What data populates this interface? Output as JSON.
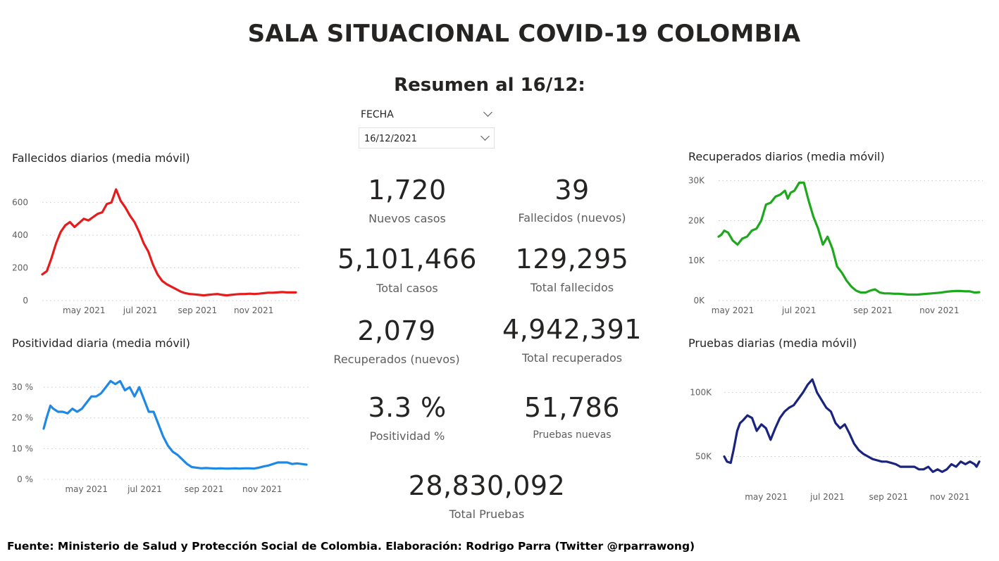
{
  "header": {
    "title": "SALA SITUACIONAL COVID-19 COLOMBIA",
    "subtitle": "Resumen al 16/12:"
  },
  "slicer": {
    "label": "FECHA",
    "value": "16/12/2021"
  },
  "kpis": [
    {
      "value": "1,720",
      "label": "Nuevos casos"
    },
    {
      "value": "39",
      "label": "Fallecidos (nuevos)"
    },
    {
      "value": "5,101,466",
      "label": "Total casos"
    },
    {
      "value": "129,295",
      "label": "Total fallecidos"
    },
    {
      "value": "2,079",
      "label": "Recuperados (nuevos)"
    },
    {
      "value": "4,942,391",
      "label": "Total recuperados"
    },
    {
      "value": "3.3 %",
      "label": "Positividad %"
    },
    {
      "value": "51,786",
      "label": "Pruebas nuevas"
    },
    {
      "value": "28,830,092",
      "label": "Total Pruebas"
    }
  ],
  "footer": "Fuente: Ministerio de Salud y Protección Social de Colombia. Elaboración: Rodrigo Parra (Twitter @rparrawong)",
  "chart_data": [
    {
      "type": "line",
      "title": "Fallecidos diarios (media móvil)",
      "color": "#e61c1c",
      "ylim": [
        0,
        650
      ],
      "yticks": [
        0,
        200,
        400,
        600
      ],
      "ytick_labels": [
        "0",
        "200",
        "400",
        "600"
      ],
      "xlim": [
        0,
        275
      ],
      "xticks": [
        {
          "x": 30,
          "label": "may 2021"
        },
        {
          "x": 91,
          "label": "jul 2021"
        },
        {
          "x": 153,
          "label": "sep 2021"
        },
        {
          "x": 214,
          "label": "nov 2021"
        }
      ],
      "grid": true,
      "series": [
        {
          "x": [
            0,
            5,
            10,
            15,
            20,
            25,
            30,
            35,
            40,
            45,
            50,
            55,
            60,
            65,
            70,
            75,
            80,
            85,
            90,
            95,
            100,
            105,
            110,
            115,
            120,
            125,
            130,
            135,
            140,
            145,
            150,
            155,
            160,
            165,
            170,
            175,
            180,
            185,
            190,
            195,
            200,
            205,
            210,
            215,
            220,
            225,
            230,
            235,
            240,
            245,
            250,
            255,
            260,
            265,
            270,
            275
          ],
          "y": [
            160,
            180,
            260,
            350,
            420,
            460,
            480,
            450,
            475,
            500,
            490,
            510,
            530,
            540,
            590,
            600,
            680,
            610,
            570,
            520,
            480,
            420,
            350,
            300,
            220,
            160,
            120,
            100,
            85,
            70,
            55,
            45,
            40,
            38,
            35,
            32,
            35,
            38,
            40,
            35,
            32,
            35,
            38,
            40,
            40,
            42,
            40,
            42,
            45,
            48,
            48,
            50,
            52,
            50,
            50,
            50
          ]
        }
      ]
    },
    {
      "type": "line",
      "title": "Positividad diaria (media móvil)",
      "color": "#1e88e5",
      "ylim": [
        0,
        33
      ],
      "yticks": [
        0,
        10,
        20,
        30
      ],
      "ytick_labels": [
        "0 %",
        "10 %",
        "20 %",
        "30 %"
      ],
      "xlim": [
        0,
        275
      ],
      "xticks": [
        {
          "x": 30,
          "label": "may 2021"
        },
        {
          "x": 91,
          "label": "jul 2021"
        },
        {
          "x": 153,
          "label": "sep 2021"
        },
        {
          "x": 214,
          "label": "nov 2021"
        }
      ],
      "grid": true,
      "series": [
        {
          "x": [
            0,
            3,
            7,
            10,
            15,
            20,
            25,
            30,
            35,
            40,
            45,
            50,
            55,
            60,
            65,
            70,
            75,
            80,
            85,
            90,
            95,
            100,
            105,
            110,
            115,
            120,
            125,
            130,
            135,
            140,
            145,
            150,
            155,
            160,
            165,
            170,
            175,
            180,
            185,
            190,
            195,
            200,
            205,
            210,
            215,
            220,
            225,
            230,
            235,
            240,
            245,
            250,
            255,
            260,
            265,
            270,
            275
          ],
          "y": [
            16.5,
            20,
            24,
            23,
            22,
            22,
            21.5,
            23,
            22,
            23,
            25,
            27,
            27,
            28,
            30,
            32,
            31,
            32,
            29,
            30,
            27,
            30,
            26,
            22,
            22,
            18,
            14,
            11,
            9,
            8,
            6.5,
            5,
            4,
            3.8,
            3.6,
            3.7,
            3.6,
            3.5,
            3.6,
            3.5,
            3.5,
            3.6,
            3.5,
            3.6,
            3.6,
            3.5,
            3.8,
            4.2,
            4.5,
            5,
            5.5,
            5.5,
            5.5,
            5,
            5.2,
            5,
            4.8
          ]
        }
      ]
    },
    {
      "type": "line",
      "title": "Recuperados diarios (media móvil)",
      "color": "#1ea81e",
      "ylim": [
        0,
        31000
      ],
      "yticks": [
        0,
        10000,
        20000,
        30000
      ],
      "ytick_labels": [
        "0K",
        "10K",
        "20K",
        "30K"
      ],
      "xlim": [
        0,
        275
      ],
      "xticks": [
        {
          "x": 0,
          "label": "may 2021"
        },
        {
          "x": 70,
          "label": "jul 2021"
        },
        {
          "x": 148,
          "label": "sep 2021"
        },
        {
          "x": 218,
          "label": "nov 2021"
        }
      ],
      "grid": true,
      "series": [
        {
          "x": [
            0,
            3,
            6,
            10,
            15,
            20,
            25,
            30,
            35,
            40,
            45,
            50,
            55,
            60,
            65,
            70,
            73,
            76,
            80,
            85,
            90,
            95,
            100,
            105,
            110,
            115,
            120,
            125,
            130,
            135,
            140,
            145,
            150,
            155,
            160,
            165,
            170,
            175,
            180,
            185,
            190,
            195,
            200,
            205,
            210,
            215,
            220,
            225,
            230,
            235,
            240,
            245,
            250,
            255,
            260,
            265,
            270,
            275
          ],
          "y": [
            16000,
            16500,
            17500,
            17000,
            15000,
            14000,
            15500,
            16000,
            17500,
            18000,
            20000,
            24000,
            24500,
            26000,
            26500,
            27500,
            25500,
            27000,
            27500,
            29500,
            29500,
            25000,
            21000,
            18000,
            14000,
            16000,
            13000,
            8500,
            7000,
            5000,
            3500,
            2500,
            2000,
            2000,
            2500,
            2800,
            2000,
            1800,
            1800,
            1700,
            1700,
            1600,
            1500,
            1500,
            1500,
            1600,
            1700,
            1800,
            1900,
            2000,
            2200,
            2300,
            2400,
            2400,
            2300,
            2300,
            2000,
            2100
          ]
        }
      ]
    },
    {
      "type": "line",
      "title": "Pruebas diarias (media móvil)",
      "color": "#1a237e",
      "ylim": [
        30000,
        115000
      ],
      "yticks": [
        50000,
        100000
      ],
      "ytick_labels": [
        "50K",
        "100K"
      ],
      "xlim": [
        0,
        275
      ],
      "xticks": [
        {
          "x": 30,
          "label": "may 2021"
        },
        {
          "x": 96,
          "label": "jul 2021"
        },
        {
          "x": 162,
          "label": "sep 2021"
        },
        {
          "x": 228,
          "label": "nov 2021"
        }
      ],
      "grid": true,
      "series": [
        {
          "x": [
            0,
            3,
            7,
            10,
            14,
            17,
            20,
            25,
            30,
            35,
            40,
            45,
            50,
            55,
            60,
            65,
            70,
            75,
            80,
            85,
            90,
            95,
            100,
            105,
            110,
            115,
            120,
            125,
            130,
            135,
            140,
            145,
            150,
            155,
            160,
            165,
            170,
            175,
            180,
            185,
            190,
            195,
            200,
            205,
            210,
            215,
            220,
            225,
            230,
            235,
            240,
            245,
            250,
            255,
            260,
            265,
            270,
            272,
            275
          ],
          "y": [
            50000,
            46000,
            45000,
            55000,
            70000,
            76000,
            78000,
            82000,
            80000,
            70000,
            75000,
            72000,
            63000,
            72000,
            80000,
            85000,
            88000,
            90000,
            95000,
            100000,
            106000,
            110000,
            100000,
            94000,
            88000,
            85000,
            76000,
            72000,
            75000,
            68000,
            60000,
            55000,
            52000,
            50000,
            48000,
            47000,
            46000,
            46000,
            45000,
            44000,
            42000,
            42000,
            42000,
            42000,
            40000,
            40000,
            42000,
            38000,
            40000,
            38000,
            40000,
            44000,
            42000,
            46000,
            44000,
            46000,
            44000,
            42000,
            46000
          ]
        }
      ]
    }
  ]
}
